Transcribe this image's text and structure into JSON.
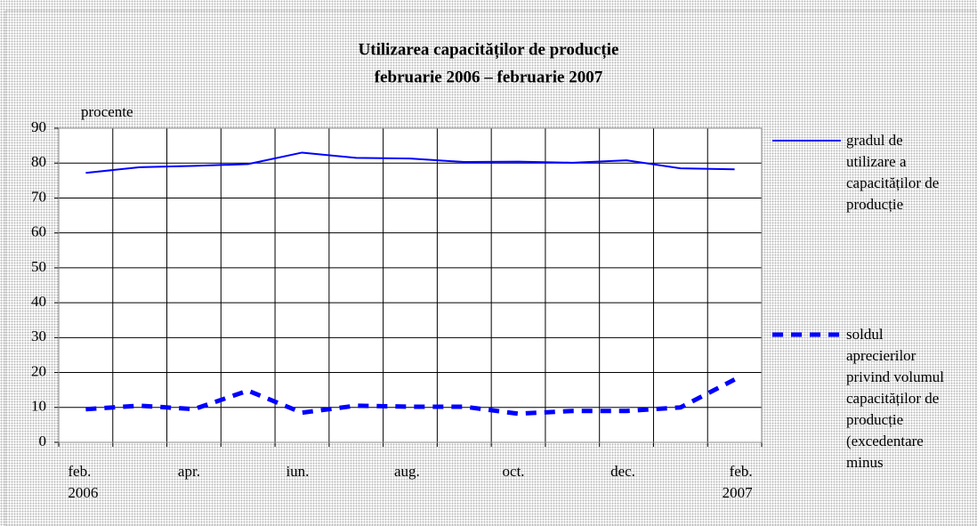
{
  "chart_data": {
    "type": "line",
    "title": "Utilizarea capacităților de producție",
    "subtitle": "februarie 2006 – februarie 2007",
    "y_label": "procente",
    "categories": [
      "feb. 2006",
      null,
      "apr.",
      null,
      "iun.",
      null,
      "aug.",
      null,
      "oct.",
      null,
      "dec.",
      null,
      "feb. 2007"
    ],
    "series": [
      {
        "name": "gradul de utilizare a capacităților de producție",
        "color": "#0000ff",
        "style": "solid",
        "values": [
          77.2,
          78.8,
          79.2,
          79.7,
          83,
          81.5,
          81.3,
          80.3,
          80.4,
          80.1,
          80.8,
          78.5,
          78.2
        ]
      },
      {
        "name": "soldul aprecierilor privind volumul capacităților de producție (excedentare minus",
        "color": "#0000ff",
        "style": "dashed",
        "values": [
          9.5,
          10.5,
          9.5,
          14.8,
          8.5,
          10.5,
          10.2,
          10.2,
          8.2,
          9,
          9,
          10,
          18
        ]
      }
    ],
    "ylim": [
      0,
      90
    ],
    "yticks": [
      0,
      10,
      20,
      30,
      40,
      50,
      60,
      70,
      80,
      90
    ],
    "grid": true
  }
}
